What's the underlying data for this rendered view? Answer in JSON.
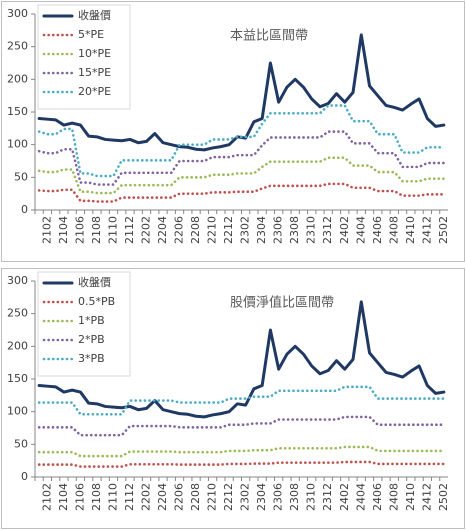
{
  "chart_data": [
    {
      "type": "line",
      "title": "本益比區間帶",
      "categories": [
        null,
        "2102",
        null,
        "2104",
        null,
        "2106",
        null,
        "2108",
        null,
        "2110",
        null,
        "2112",
        null,
        "2202",
        null,
        "2204",
        null,
        "2206",
        null,
        "2208",
        null,
        "2210",
        null,
        "2212",
        null,
        "2302",
        null,
        "2304",
        null,
        "2306",
        null,
        "2308",
        null,
        "2310",
        null,
        "2312",
        null,
        "2402",
        null,
        "2404",
        null,
        "2406",
        null,
        "2408",
        null,
        "2410",
        null,
        "2412",
        null,
        "2502"
      ],
      "ylim": [
        0,
        300
      ],
      "yticks": [
        0,
        50,
        100,
        150,
        200,
        250,
        300
      ],
      "series": [
        {
          "name": "收盤價",
          "color": "#1f3864",
          "values": [
            140,
            139,
            138,
            130,
            133,
            130,
            113,
            112,
            108,
            107,
            106,
            108,
            103,
            105,
            117,
            103,
            100,
            97,
            96,
            93,
            92,
            95,
            97,
            100,
            112,
            110,
            135,
            140,
            225,
            165,
            188,
            200,
            188,
            170,
            158,
            163,
            178,
            165,
            180,
            268,
            190,
            175,
            160,
            157,
            153,
            162,
            170,
            140,
            128,
            130
          ]
        },
        {
          "name": "5*PE",
          "color": "#c0504d",
          "values": [
            30,
            29,
            29,
            31,
            31,
            14,
            14,
            13,
            13,
            13,
            19,
            19,
            19,
            19,
            19,
            19,
            19,
            25,
            25,
            25,
            25,
            27,
            27,
            27,
            28,
            28,
            28,
            33,
            37,
            37,
            37,
            37,
            37,
            37,
            37,
            40,
            40,
            40,
            34,
            34,
            34,
            29,
            29,
            29,
            22,
            22,
            22,
            24,
            24,
            24
          ]
        },
        {
          "name": "10*PE",
          "color": "#9bbb59",
          "values": [
            60,
            58,
            58,
            62,
            62,
            28,
            28,
            26,
            26,
            26,
            38,
            38,
            38,
            38,
            38,
            38,
            38,
            50,
            50,
            50,
            50,
            54,
            54,
            54,
            56,
            56,
            56,
            66,
            74,
            74,
            74,
            74,
            74,
            74,
            74,
            80,
            80,
            80,
            68,
            68,
            68,
            58,
            58,
            58,
            44,
            44,
            44,
            48,
            48,
            48
          ]
        },
        {
          "name": "15*PE",
          "color": "#8064a2",
          "values": [
            90,
            87,
            87,
            93,
            93,
            42,
            42,
            39,
            39,
            39,
            57,
            57,
            57,
            57,
            57,
            57,
            57,
            75,
            75,
            75,
            75,
            81,
            81,
            81,
            84,
            84,
            84,
            99,
            111,
            111,
            111,
            111,
            111,
            111,
            111,
            120,
            120,
            120,
            102,
            102,
            102,
            87,
            87,
            87,
            66,
            66,
            66,
            72,
            72,
            72
          ]
        },
        {
          "name": "20*PE",
          "color": "#4bacc6",
          "values": [
            120,
            116,
            116,
            124,
            124,
            56,
            56,
            52,
            52,
            52,
            76,
            76,
            76,
            76,
            76,
            76,
            76,
            100,
            100,
            100,
            100,
            108,
            108,
            108,
            112,
            112,
            112,
            132,
            148,
            148,
            148,
            148,
            148,
            148,
            148,
            160,
            160,
            160,
            136,
            136,
            136,
            116,
            116,
            116,
            88,
            88,
            88,
            96,
            96,
            96
          ]
        }
      ]
    },
    {
      "type": "line",
      "title": "股價淨值比區間帶",
      "categories": [
        null,
        "2102",
        null,
        "2104",
        null,
        "2106",
        null,
        "2108",
        null,
        "2110",
        null,
        "2112",
        null,
        "2202",
        null,
        "2204",
        null,
        "2206",
        null,
        "2208",
        null,
        "2210",
        null,
        "2212",
        null,
        "2302",
        null,
        "2304",
        null,
        "2306",
        null,
        "2308",
        null,
        "2310",
        null,
        "2312",
        null,
        "2402",
        null,
        "2404",
        null,
        "2406",
        null,
        "2408",
        null,
        "2410",
        null,
        "2412",
        null,
        "2502"
      ],
      "ylim": [
        0,
        300
      ],
      "yticks": [
        0,
        50,
        100,
        150,
        200,
        250,
        300
      ],
      "series": [
        {
          "name": "收盤價",
          "color": "#1f3864",
          "values": [
            140,
            139,
            138,
            130,
            133,
            130,
            113,
            112,
            108,
            107,
            106,
            108,
            103,
            105,
            117,
            103,
            100,
            97,
            96,
            93,
            92,
            95,
            97,
            100,
            112,
            110,
            135,
            140,
            225,
            165,
            188,
            200,
            188,
            170,
            158,
            163,
            178,
            165,
            180,
            268,
            190,
            175,
            160,
            157,
            153,
            162,
            170,
            140,
            128,
            130
          ]
        },
        {
          "name": "0.5*PB",
          "color": "#c0504d",
          "values": [
            19,
            19,
            19,
            19,
            19,
            16,
            16,
            16,
            16,
            16,
            16,
            19.5,
            19.5,
            19.5,
            19.5,
            19.5,
            19.5,
            19,
            19,
            19,
            19,
            19,
            19,
            20,
            20,
            20,
            20.5,
            20.5,
            20.5,
            22,
            22,
            22,
            22,
            22,
            22,
            22,
            22,
            23,
            23,
            23,
            23,
            20,
            20,
            20,
            20,
            20,
            20,
            20,
            20,
            20
          ]
        },
        {
          "name": "1*PB",
          "color": "#9bbb59",
          "values": [
            38,
            38,
            38,
            38,
            38,
            32,
            32,
            32,
            32,
            32,
            32,
            39,
            39,
            39,
            39,
            39,
            39,
            38,
            38,
            38,
            38,
            38,
            38,
            40,
            40,
            40,
            41,
            41,
            41,
            44,
            44,
            44,
            44,
            44,
            44,
            44,
            44,
            46,
            46,
            46,
            46,
            40,
            40,
            40,
            40,
            40,
            40,
            40,
            40,
            40
          ]
        },
        {
          "name": "2*PB",
          "color": "#8064a2",
          "values": [
            76,
            76,
            76,
            76,
            76,
            64,
            64,
            64,
            64,
            64,
            64,
            78,
            78,
            78,
            78,
            78,
            78,
            76,
            76,
            76,
            76,
            76,
            76,
            80,
            80,
            80,
            82,
            82,
            82,
            88,
            88,
            88,
            88,
            88,
            88,
            88,
            88,
            92,
            92,
            92,
            92,
            80,
            80,
            80,
            80,
            80,
            80,
            80,
            80,
            80
          ]
        },
        {
          "name": "3*PB",
          "color": "#4bacc6",
          "values": [
            114,
            114,
            114,
            114,
            114,
            96,
            96,
            96,
            96,
            96,
            96,
            117,
            117,
            117,
            117,
            117,
            117,
            114,
            114,
            114,
            114,
            114,
            114,
            120,
            120,
            120,
            123,
            123,
            123,
            132,
            132,
            132,
            132,
            132,
            132,
            132,
            132,
            138,
            138,
            138,
            138,
            120,
            120,
            120,
            120,
            120,
            120,
            120,
            120,
            120
          ]
        }
      ]
    }
  ]
}
